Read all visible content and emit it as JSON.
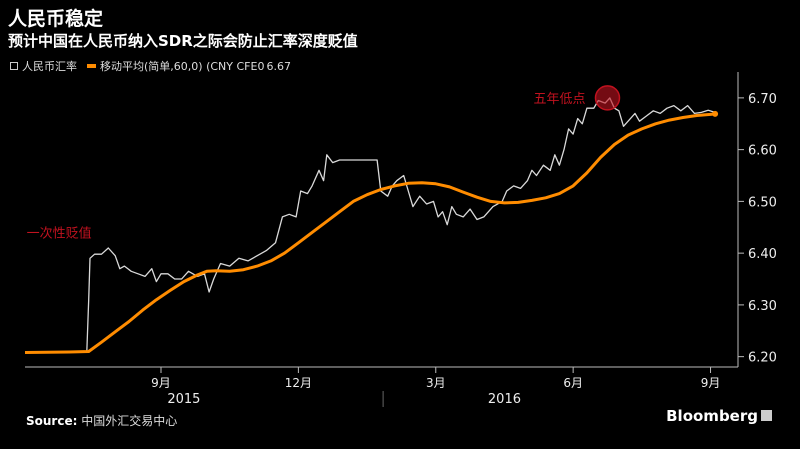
{
  "header": {
    "title": "人民币稳定",
    "subtitle": "预计中国在人民币纳入SDR之际会防止汇率深度贬值"
  },
  "legend": {
    "series1": "人民币汇率",
    "series2": "移动平均(简单,60,0) (CNY CFE0",
    "series2_value": "6.67"
  },
  "footer": {
    "source_label": "Source:",
    "source_text": "中国外汇交易中心",
    "brand": "Bloomberg"
  },
  "colors": {
    "background": "#000000",
    "rate": "#d9d9d9",
    "ma": "#ff8c00",
    "annotation": "#c1121f"
  },
  "chart_data": {
    "type": "line",
    "yticks": [
      6.2,
      6.3,
      6.4,
      6.5,
      6.6,
      6.7
    ],
    "ylim": [
      6.18,
      6.75
    ],
    "xticks": [
      {
        "label": "9月",
        "t": 2
      },
      {
        "label": "12月",
        "t": 5
      },
      {
        "label": "3月",
        "t": 8
      },
      {
        "label": "6月",
        "t": 11
      },
      {
        "label": "9月",
        "t": 14
      }
    ],
    "years": [
      {
        "label": "2015",
        "t": 2.5
      },
      {
        "label": "2016",
        "t": 9.5
      }
    ],
    "annotations": [
      {
        "text": "一次性贬值",
        "t": 0.55,
        "y": 6.43
      },
      {
        "text": "五年低点",
        "t": 9.7,
        "y": 6.7
      }
    ],
    "series": [
      {
        "name": "人民币汇率",
        "points": [
          [
            -0.97,
            6.207
          ],
          [
            -0.6,
            6.209
          ],
          [
            -0.3,
            6.209
          ],
          [
            0.0,
            6.209
          ],
          [
            0.38,
            6.209
          ],
          [
            0.42,
            6.31
          ],
          [
            0.45,
            6.39
          ],
          [
            0.55,
            6.398
          ],
          [
            0.7,
            6.398
          ],
          [
            0.85,
            6.41
          ],
          [
            1.0,
            6.395
          ],
          [
            1.1,
            6.37
          ],
          [
            1.2,
            6.375
          ],
          [
            1.35,
            6.365
          ],
          [
            1.5,
            6.36
          ],
          [
            1.65,
            6.355
          ],
          [
            1.8,
            6.37
          ],
          [
            1.9,
            6.345
          ],
          [
            2.0,
            6.36
          ],
          [
            2.15,
            6.36
          ],
          [
            2.3,
            6.35
          ],
          [
            2.45,
            6.35
          ],
          [
            2.6,
            6.365
          ],
          [
            2.8,
            6.355
          ],
          [
            2.95,
            6.36
          ],
          [
            3.05,
            6.325
          ],
          [
            3.15,
            6.35
          ],
          [
            3.3,
            6.38
          ],
          [
            3.5,
            6.375
          ],
          [
            3.7,
            6.39
          ],
          [
            3.9,
            6.385
          ],
          [
            4.1,
            6.395
          ],
          [
            4.3,
            6.405
          ],
          [
            4.5,
            6.42
          ],
          [
            4.65,
            6.47
          ],
          [
            4.8,
            6.475
          ],
          [
            4.95,
            6.47
          ],
          [
            5.05,
            6.52
          ],
          [
            5.2,
            6.515
          ],
          [
            5.3,
            6.53
          ],
          [
            5.45,
            6.56
          ],
          [
            5.55,
            6.54
          ],
          [
            5.62,
            6.59
          ],
          [
            5.75,
            6.575
          ],
          [
            5.9,
            6.58
          ],
          [
            6.1,
            6.58
          ],
          [
            6.3,
            6.58
          ],
          [
            6.5,
            6.58
          ],
          [
            6.72,
            6.58
          ],
          [
            6.8,
            6.52
          ],
          [
            6.95,
            6.51
          ],
          [
            7.05,
            6.53
          ],
          [
            7.15,
            6.54
          ],
          [
            7.3,
            6.55
          ],
          [
            7.4,
            6.52
          ],
          [
            7.5,
            6.49
          ],
          [
            7.65,
            6.51
          ],
          [
            7.8,
            6.495
          ],
          [
            7.95,
            6.5
          ],
          [
            8.05,
            6.47
          ],
          [
            8.15,
            6.48
          ],
          [
            8.25,
            6.455
          ],
          [
            8.35,
            6.49
          ],
          [
            8.45,
            6.475
          ],
          [
            8.6,
            6.47
          ],
          [
            8.75,
            6.485
          ],
          [
            8.9,
            6.465
          ],
          [
            9.05,
            6.47
          ],
          [
            9.25,
            6.49
          ],
          [
            9.45,
            6.5
          ],
          [
            9.55,
            6.52
          ],
          [
            9.7,
            6.53
          ],
          [
            9.85,
            6.525
          ],
          [
            10.0,
            6.54
          ],
          [
            10.1,
            6.56
          ],
          [
            10.2,
            6.55
          ],
          [
            10.35,
            6.57
          ],
          [
            10.5,
            6.56
          ],
          [
            10.6,
            6.59
          ],
          [
            10.7,
            6.57
          ],
          [
            10.8,
            6.6
          ],
          [
            10.9,
            6.64
          ],
          [
            11.0,
            6.63
          ],
          [
            11.1,
            6.66
          ],
          [
            11.2,
            6.65
          ],
          [
            11.3,
            6.68
          ],
          [
            11.45,
            6.68
          ],
          [
            11.55,
            6.695
          ],
          [
            11.7,
            6.69
          ],
          [
            11.8,
            6.7
          ],
          [
            11.9,
            6.68
          ],
          [
            12.0,
            6.675
          ],
          [
            12.1,
            6.645
          ],
          [
            12.2,
            6.655
          ],
          [
            12.35,
            6.67
          ],
          [
            12.45,
            6.655
          ],
          [
            12.6,
            6.665
          ],
          [
            12.75,
            6.675
          ],
          [
            12.9,
            6.67
          ],
          [
            13.05,
            6.68
          ],
          [
            13.2,
            6.685
          ],
          [
            13.35,
            6.675
          ],
          [
            13.5,
            6.685
          ],
          [
            13.65,
            6.67
          ],
          [
            13.8,
            6.672
          ],
          [
            13.95,
            6.676
          ],
          [
            14.1,
            6.672
          ]
        ]
      },
      {
        "name": "移动平均(简单,60,0) (CNY CFE0",
        "points": [
          [
            -0.97,
            6.208
          ],
          [
            0.0,
            6.209
          ],
          [
            0.42,
            6.21
          ],
          [
            0.7,
            6.228
          ],
          [
            1.0,
            6.248
          ],
          [
            1.3,
            6.268
          ],
          [
            1.6,
            6.29
          ],
          [
            1.9,
            6.31
          ],
          [
            2.2,
            6.328
          ],
          [
            2.5,
            6.345
          ],
          [
            2.8,
            6.358
          ],
          [
            3.0,
            6.365
          ],
          [
            3.2,
            6.366
          ],
          [
            3.5,
            6.365
          ],
          [
            3.8,
            6.368
          ],
          [
            4.1,
            6.375
          ],
          [
            4.4,
            6.385
          ],
          [
            4.7,
            6.4
          ],
          [
            5.0,
            6.42
          ],
          [
            5.3,
            6.44
          ],
          [
            5.6,
            6.46
          ],
          [
            5.9,
            6.48
          ],
          [
            6.2,
            6.5
          ],
          [
            6.5,
            6.513
          ],
          [
            6.8,
            6.523
          ],
          [
            7.1,
            6.53
          ],
          [
            7.4,
            6.535
          ],
          [
            7.7,
            6.536
          ],
          [
            8.0,
            6.534
          ],
          [
            8.3,
            6.528
          ],
          [
            8.6,
            6.518
          ],
          [
            8.9,
            6.508
          ],
          [
            9.2,
            6.5
          ],
          [
            9.5,
            6.497
          ],
          [
            9.8,
            6.498
          ],
          [
            10.1,
            6.502
          ],
          [
            10.4,
            6.507
          ],
          [
            10.7,
            6.515
          ],
          [
            11.0,
            6.53
          ],
          [
            11.3,
            6.555
          ],
          [
            11.6,
            6.585
          ],
          [
            11.9,
            6.61
          ],
          [
            12.2,
            6.628
          ],
          [
            12.5,
            6.64
          ],
          [
            12.8,
            6.65
          ],
          [
            13.1,
            6.657
          ],
          [
            13.4,
            6.662
          ],
          [
            13.7,
            6.666
          ],
          [
            14.0,
            6.668
          ],
          [
            14.1,
            6.669
          ]
        ]
      }
    ]
  }
}
